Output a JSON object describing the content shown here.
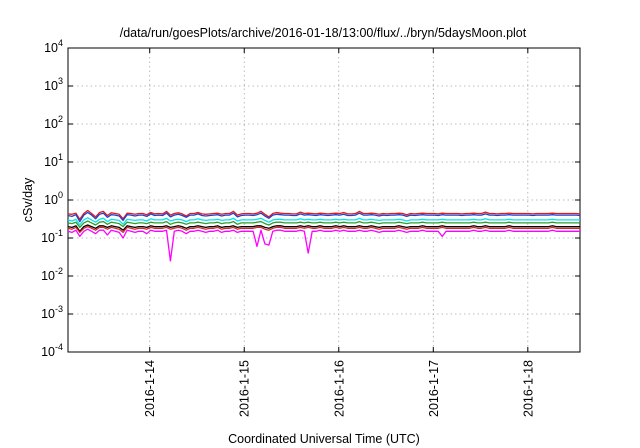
{
  "chart_data": {
    "type": "line",
    "title": "/data/run/goesPlots/archive/2016-01-18/13:00/flux/../bryn/5daysMoon.plot",
    "xlabel": "Coordinated Universal Time (UTC)",
    "ylabel": "cSv/day",
    "yscale": "log",
    "ylim": [
      0.0001,
      10000
    ],
    "y_tick_labels": [
      {
        "value": 0.0001,
        "base": "10",
        "exp": "-4"
      },
      {
        "value": 0.001,
        "base": "10",
        "exp": "-3"
      },
      {
        "value": 0.01,
        "base": "10",
        "exp": "-2"
      },
      {
        "value": 0.1,
        "base": "10",
        "exp": "-1"
      },
      {
        "value": 1,
        "base": "10",
        "exp": "0"
      },
      {
        "value": 10,
        "base": "10",
        "exp": "1"
      },
      {
        "value": 100,
        "base": "10",
        "exp": "2"
      },
      {
        "value": 1000,
        "base": "10",
        "exp": "3"
      },
      {
        "value": 10000,
        "base": "10",
        "exp": "4"
      }
    ],
    "xlim": [
      "2016-01-13T03:15",
      "2016-01-18T13:15"
    ],
    "x_tick_labels": [
      "2016-1-14",
      "2016-1-15",
      "2016-1-16",
      "2016-1-17",
      "2016-1-18"
    ],
    "x_tick_values": [
      "2016-01-14T00:00",
      "2016-01-15T00:00",
      "2016-01-16T00:00",
      "2016-01-17T00:00",
      "2016-01-18T00:00"
    ],
    "grid": true,
    "legend": "none",
    "sample_interval_hours": 1,
    "series": [
      {
        "color": "#e31a1c",
        "base_level": 0.44,
        "values": [
          0.43,
          0.42,
          0.45,
          0.31,
          0.44,
          0.53,
          0.44,
          0.36,
          0.47,
          0.5,
          0.39,
          0.46,
          0.44,
          0.42,
          0.32,
          0.45,
          0.44,
          0.42,
          0.44,
          0.44,
          0.41,
          0.47,
          0.43,
          0.44,
          0.43,
          0.5,
          0.4,
          0.44,
          0.46,
          0.43,
          0.38,
          0.44,
          0.44,
          0.47,
          0.43,
          0.42,
          0.43,
          0.44,
          0.45,
          0.42,
          0.44,
          0.44,
          0.5,
          0.4,
          0.43,
          0.44,
          0.44,
          0.43,
          0.45,
          0.5,
          0.42,
          0.36,
          0.44,
          0.47,
          0.45,
          0.44,
          0.44,
          0.43,
          0.43,
          0.48,
          0.44,
          0.45,
          0.44,
          0.43,
          0.45,
          0.44,
          0.43,
          0.44,
          0.45,
          0.44,
          0.47,
          0.43,
          0.43,
          0.44,
          0.5,
          0.44,
          0.44,
          0.45,
          0.44,
          0.42,
          0.44,
          0.43,
          0.44,
          0.44,
          0.45,
          0.44,
          0.41,
          0.44,
          0.43,
          0.44,
          0.45,
          0.44,
          0.44,
          0.44,
          0.43,
          0.45,
          0.44,
          0.44,
          0.44,
          0.44,
          0.43,
          0.44,
          0.44,
          0.45,
          0.44,
          0.44,
          0.48,
          0.44,
          0.44,
          0.43,
          0.44,
          0.44,
          0.45,
          0.44,
          0.44,
          0.44,
          0.44,
          0.44,
          0.43,
          0.44,
          0.44,
          0.44,
          0.44,
          0.45,
          0.44,
          0.44,
          0.44,
          0.44,
          0.44,
          0.44,
          0.43
        ]
      },
      {
        "color": "#1f3fd1",
        "base_level": 0.4,
        "values": [
          0.39,
          0.37,
          0.41,
          0.27,
          0.4,
          0.47,
          0.4,
          0.32,
          0.42,
          0.45,
          0.35,
          0.41,
          0.4,
          0.38,
          0.29,
          0.41,
          0.4,
          0.38,
          0.4,
          0.4,
          0.37,
          0.43,
          0.39,
          0.4,
          0.39,
          0.45,
          0.36,
          0.4,
          0.42,
          0.39,
          0.35,
          0.4,
          0.4,
          0.43,
          0.39,
          0.38,
          0.39,
          0.4,
          0.41,
          0.38,
          0.4,
          0.4,
          0.45,
          0.36,
          0.39,
          0.4,
          0.4,
          0.39,
          0.41,
          0.45,
          0.38,
          0.33,
          0.4,
          0.42,
          0.41,
          0.4,
          0.4,
          0.39,
          0.39,
          0.43,
          0.4,
          0.41,
          0.4,
          0.39,
          0.41,
          0.4,
          0.39,
          0.4,
          0.41,
          0.4,
          0.42,
          0.39,
          0.39,
          0.4,
          0.45,
          0.4,
          0.4,
          0.41,
          0.4,
          0.38,
          0.4,
          0.39,
          0.4,
          0.4,
          0.41,
          0.4,
          0.37,
          0.4,
          0.39,
          0.4,
          0.41,
          0.4,
          0.4,
          0.4,
          0.39,
          0.41,
          0.4,
          0.4,
          0.4,
          0.4,
          0.39,
          0.4,
          0.4,
          0.41,
          0.4,
          0.4,
          0.43,
          0.4,
          0.4,
          0.39,
          0.4,
          0.4,
          0.41,
          0.4,
          0.4,
          0.4,
          0.4,
          0.4,
          0.39,
          0.4,
          0.4,
          0.4,
          0.4,
          0.41,
          0.4,
          0.4,
          0.4,
          0.4,
          0.4,
          0.4,
          0.39
        ]
      },
      {
        "color": "#00e5ee",
        "base_level": 0.3,
        "values": [
          0.3,
          0.28,
          0.31,
          0.22,
          0.3,
          0.34,
          0.3,
          0.26,
          0.31,
          0.33,
          0.27,
          0.31,
          0.3,
          0.29,
          0.23,
          0.31,
          0.3,
          0.29,
          0.3,
          0.3,
          0.28,
          0.32,
          0.3,
          0.3,
          0.3,
          0.33,
          0.28,
          0.3,
          0.31,
          0.3,
          0.27,
          0.3,
          0.3,
          0.32,
          0.3,
          0.29,
          0.3,
          0.3,
          0.31,
          0.29,
          0.3,
          0.3,
          0.33,
          0.28,
          0.3,
          0.3,
          0.3,
          0.3,
          0.31,
          0.33,
          0.29,
          0.26,
          0.3,
          0.31,
          0.31,
          0.3,
          0.3,
          0.3,
          0.3,
          0.32,
          0.3,
          0.31,
          0.3,
          0.3,
          0.31,
          0.3,
          0.3,
          0.3,
          0.31,
          0.3,
          0.31,
          0.3,
          0.3,
          0.3,
          0.33,
          0.3,
          0.3,
          0.31,
          0.3,
          0.29,
          0.3,
          0.3,
          0.3,
          0.3,
          0.31,
          0.3,
          0.28,
          0.3,
          0.3,
          0.3,
          0.31,
          0.3,
          0.3,
          0.3,
          0.3,
          0.31,
          0.3,
          0.3,
          0.3,
          0.3,
          0.3,
          0.3,
          0.3,
          0.31,
          0.3,
          0.3,
          0.32,
          0.3,
          0.3,
          0.3,
          0.3,
          0.3,
          0.31,
          0.3,
          0.3,
          0.3,
          0.3,
          0.3,
          0.3,
          0.3,
          0.3,
          0.3,
          0.3,
          0.31,
          0.3,
          0.3,
          0.3,
          0.3,
          0.3,
          0.3,
          0.3
        ]
      },
      {
        "color": "#2ca02c",
        "base_level": 0.25,
        "values": [
          0.25,
          0.24,
          0.26,
          0.19,
          0.25,
          0.28,
          0.25,
          0.22,
          0.26,
          0.27,
          0.23,
          0.26,
          0.25,
          0.24,
          0.2,
          0.26,
          0.25,
          0.24,
          0.25,
          0.25,
          0.24,
          0.26,
          0.25,
          0.25,
          0.25,
          0.27,
          0.23,
          0.25,
          0.26,
          0.25,
          0.23,
          0.25,
          0.25,
          0.26,
          0.25,
          0.24,
          0.25,
          0.25,
          0.26,
          0.24,
          0.25,
          0.25,
          0.27,
          0.23,
          0.25,
          0.25,
          0.25,
          0.25,
          0.26,
          0.27,
          0.24,
          0.22,
          0.25,
          0.26,
          0.26,
          0.25,
          0.25,
          0.25,
          0.25,
          0.26,
          0.25,
          0.26,
          0.25,
          0.25,
          0.26,
          0.25,
          0.25,
          0.25,
          0.26,
          0.25,
          0.26,
          0.25,
          0.25,
          0.25,
          0.27,
          0.25,
          0.25,
          0.26,
          0.25,
          0.24,
          0.25,
          0.25,
          0.25,
          0.25,
          0.26,
          0.25,
          0.24,
          0.25,
          0.25,
          0.25,
          0.26,
          0.25,
          0.25,
          0.25,
          0.25,
          0.26,
          0.25,
          0.25,
          0.25,
          0.25,
          0.25,
          0.25,
          0.25,
          0.26,
          0.25,
          0.25,
          0.26,
          0.25,
          0.25,
          0.25,
          0.25,
          0.25,
          0.26,
          0.25,
          0.25,
          0.25,
          0.25,
          0.25,
          0.25,
          0.25,
          0.25,
          0.25,
          0.25,
          0.26,
          0.25,
          0.25,
          0.25,
          0.25,
          0.25,
          0.25,
          0.25
        ]
      },
      {
        "color": "#000000",
        "base_level": 0.2,
        "values": [
          0.2,
          0.19,
          0.21,
          0.15,
          0.2,
          0.22,
          0.2,
          0.18,
          0.21,
          0.21,
          0.19,
          0.21,
          0.2,
          0.19,
          0.16,
          0.21,
          0.2,
          0.19,
          0.2,
          0.2,
          0.19,
          0.21,
          0.2,
          0.2,
          0.2,
          0.21,
          0.19,
          0.2,
          0.21,
          0.2,
          0.18,
          0.2,
          0.2,
          0.21,
          0.2,
          0.19,
          0.2,
          0.2,
          0.21,
          0.19,
          0.2,
          0.2,
          0.21,
          0.19,
          0.2,
          0.2,
          0.2,
          0.2,
          0.21,
          0.21,
          0.19,
          0.18,
          0.2,
          0.21,
          0.21,
          0.2,
          0.2,
          0.2,
          0.2,
          0.21,
          0.2,
          0.21,
          0.2,
          0.2,
          0.21,
          0.2,
          0.2,
          0.2,
          0.21,
          0.2,
          0.21,
          0.2,
          0.2,
          0.2,
          0.21,
          0.2,
          0.2,
          0.21,
          0.2,
          0.19,
          0.2,
          0.2,
          0.2,
          0.2,
          0.21,
          0.2,
          0.19,
          0.2,
          0.2,
          0.2,
          0.21,
          0.2,
          0.2,
          0.2,
          0.2,
          0.21,
          0.2,
          0.2,
          0.2,
          0.2,
          0.2,
          0.2,
          0.2,
          0.21,
          0.2,
          0.2,
          0.21,
          0.2,
          0.2,
          0.2,
          0.2,
          0.2,
          0.21,
          0.2,
          0.2,
          0.2,
          0.2,
          0.2,
          0.2,
          0.2,
          0.2,
          0.2,
          0.2,
          0.21,
          0.2,
          0.2,
          0.2,
          0.2,
          0.2,
          0.2,
          0.2
        ]
      },
      {
        "color": "#d62728",
        "base_level": 0.18,
        "values": [
          0.18,
          0.17,
          0.19,
          0.14,
          0.18,
          0.2,
          0.18,
          0.16,
          0.19,
          0.19,
          0.17,
          0.19,
          0.18,
          0.17,
          0.14,
          0.19,
          0.18,
          0.17,
          0.18,
          0.18,
          0.17,
          0.19,
          0.18,
          0.18,
          0.18,
          0.19,
          0.17,
          0.18,
          0.19,
          0.18,
          0.16,
          0.18,
          0.18,
          0.19,
          0.18,
          0.17,
          0.18,
          0.18,
          0.19,
          0.17,
          0.18,
          0.18,
          0.19,
          0.17,
          0.18,
          0.18,
          0.18,
          0.18,
          0.19,
          0.19,
          0.17,
          0.16,
          0.18,
          0.19,
          0.19,
          0.18,
          0.18,
          0.18,
          0.18,
          0.19,
          0.18,
          0.19,
          0.18,
          0.18,
          0.19,
          0.18,
          0.18,
          0.18,
          0.19,
          0.18,
          0.19,
          0.18,
          0.18,
          0.18,
          0.19,
          0.18,
          0.18,
          0.19,
          0.18,
          0.17,
          0.18,
          0.18,
          0.18,
          0.18,
          0.19,
          0.18,
          0.17,
          0.18,
          0.18,
          0.18,
          0.19,
          0.18,
          0.18,
          0.18,
          0.18,
          0.19,
          0.18,
          0.18,
          0.18,
          0.18,
          0.18,
          0.18,
          0.18,
          0.19,
          0.18,
          0.18,
          0.19,
          0.18,
          0.18,
          0.18,
          0.18,
          0.18,
          0.19,
          0.18,
          0.18,
          0.18,
          0.18,
          0.18,
          0.18,
          0.18,
          0.18,
          0.18,
          0.18,
          0.19,
          0.18,
          0.18,
          0.18,
          0.18,
          0.18,
          0.18,
          0.18
        ]
      },
      {
        "color": "#ff00ff",
        "base_level": 0.15,
        "values": [
          0.15,
          0.14,
          0.16,
          0.11,
          0.15,
          0.17,
          0.15,
          0.13,
          0.16,
          0.16,
          0.12,
          0.16,
          0.15,
          0.14,
          0.1,
          0.16,
          0.15,
          0.14,
          0.15,
          0.15,
          0.13,
          0.16,
          0.15,
          0.15,
          0.15,
          0.16,
          0.025,
          0.15,
          0.16,
          0.15,
          0.13,
          0.15,
          0.15,
          0.16,
          0.15,
          0.14,
          0.15,
          0.15,
          0.16,
          0.14,
          0.15,
          0.15,
          0.16,
          0.14,
          0.15,
          0.15,
          0.15,
          0.15,
          0.06,
          0.16,
          0.07,
          0.065,
          0.15,
          0.16,
          0.16,
          0.15,
          0.15,
          0.15,
          0.15,
          0.16,
          0.15,
          0.04,
          0.15,
          0.15,
          0.16,
          0.15,
          0.15,
          0.15,
          0.16,
          0.15,
          0.16,
          0.15,
          0.15,
          0.15,
          0.16,
          0.15,
          0.15,
          0.16,
          0.15,
          0.14,
          0.15,
          0.15,
          0.15,
          0.15,
          0.16,
          0.15,
          0.14,
          0.15,
          0.15,
          0.15,
          0.16,
          0.15,
          0.15,
          0.15,
          0.15,
          0.11,
          0.15,
          0.15,
          0.15,
          0.15,
          0.15,
          0.15,
          0.15,
          0.16,
          0.15,
          0.15,
          0.16,
          0.15,
          0.15,
          0.15,
          0.15,
          0.15,
          0.16,
          0.15,
          0.15,
          0.15,
          0.15,
          0.15,
          0.15,
          0.15,
          0.15,
          0.15,
          0.15,
          0.16,
          0.15,
          0.15,
          0.15,
          0.15,
          0.15,
          0.15,
          0.15
        ]
      }
    ]
  }
}
